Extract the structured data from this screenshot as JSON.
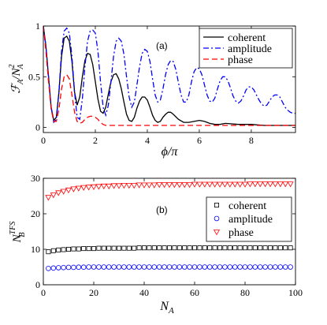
{
  "chart_data": [
    {
      "type": "line",
      "panel_label": "(a)",
      "xlabel": "ϕ/π",
      "ylabel_main": "ℱ",
      "ylabel_sub": "A",
      "ylabel_den": "/N",
      "ylabel_den_sup": "2",
      "ylabel_den_sub": "A",
      "xlim": [
        0,
        9.7
      ],
      "ylim": [
        -0.05,
        1.0
      ],
      "xticks": [
        0,
        2,
        4,
        6,
        8
      ],
      "yticks": [
        0,
        0.5,
        1
      ],
      "ytick_labels": [
        "0",
        "0.5",
        "1"
      ],
      "legend_position": "top-right",
      "series": [
        {
          "name": "coherent",
          "color": "#000000",
          "style": "solid",
          "x": [
            0,
            0.1,
            0.2,
            0.3,
            0.4,
            0.5,
            0.6,
            0.7,
            0.8,
            0.9,
            1.0,
            1.1,
            1.2,
            1.3,
            1.4,
            1.5,
            1.6,
            1.7,
            1.8,
            1.9,
            2.0,
            2.1,
            2.2,
            2.3,
            2.4,
            2.5,
            2.6,
            2.7,
            2.8,
            2.9,
            3.0,
            3.1,
            3.2,
            3.3,
            3.4,
            3.5,
            3.6,
            3.7,
            3.8,
            3.9,
            4.0,
            4.1,
            4.2,
            4.3,
            4.4,
            4.5,
            4.6,
            4.7,
            4.8,
            4.9,
            5.0,
            5.2,
            5.4,
            5.6,
            5.8,
            6.0,
            6.2,
            6.4,
            6.6,
            6.8,
            7.0,
            7.5,
            8.0,
            8.5,
            9.0,
            9.5,
            9.7
          ],
          "y": [
            1.0,
            0.8,
            0.5,
            0.2,
            0.07,
            0.1,
            0.35,
            0.7,
            0.88,
            0.9,
            0.85,
            0.65,
            0.35,
            0.22,
            0.3,
            0.5,
            0.66,
            0.73,
            0.72,
            0.62,
            0.45,
            0.28,
            0.16,
            0.14,
            0.2,
            0.33,
            0.45,
            0.52,
            0.53,
            0.48,
            0.38,
            0.25,
            0.13,
            0.07,
            0.06,
            0.1,
            0.19,
            0.26,
            0.3,
            0.3,
            0.27,
            0.2,
            0.12,
            0.07,
            0.05,
            0.06,
            0.1,
            0.13,
            0.15,
            0.15,
            0.13,
            0.08,
            0.05,
            0.05,
            0.06,
            0.07,
            0.06,
            0.04,
            0.03,
            0.03,
            0.04,
            0.03,
            0.03,
            0.02,
            0.02,
            0.02,
            0.02
          ]
        },
        {
          "name": "amplitude",
          "color": "#0000ff",
          "style": "dashdot",
          "x": [
            0,
            0.1,
            0.2,
            0.3,
            0.4,
            0.5,
            0.6,
            0.7,
            0.8,
            0.9,
            1.0,
            1.1,
            1.2,
            1.3,
            1.4,
            1.5,
            1.6,
            1.7,
            1.8,
            1.9,
            2.0,
            2.1,
            2.2,
            2.3,
            2.4,
            2.5,
            2.6,
            2.7,
            2.8,
            2.9,
            3.0,
            3.1,
            3.2,
            3.3,
            3.4,
            3.5,
            3.6,
            3.7,
            3.8,
            3.9,
            4.0,
            4.1,
            4.2,
            4.3,
            4.4,
            4.5,
            4.6,
            4.7,
            4.8,
            4.9,
            5.0,
            5.1,
            5.2,
            5.3,
            5.4,
            5.5,
            5.6,
            5.7,
            5.8,
            5.9,
            6.0,
            6.1,
            6.2,
            6.3,
            6.4,
            6.5,
            6.6,
            6.7,
            6.8,
            6.9,
            7.0,
            7.1,
            7.2,
            7.3,
            7.4,
            7.5,
            7.6,
            7.7,
            7.8,
            7.9,
            8.0,
            8.1,
            8.2,
            8.3,
            8.4,
            8.5,
            8.6,
            8.7,
            8.8,
            8.9,
            9.0,
            9.1,
            9.2,
            9.3,
            9.4,
            9.5,
            9.6,
            9.7
          ],
          "y": [
            1.0,
            0.8,
            0.5,
            0.2,
            0.05,
            0.08,
            0.35,
            0.75,
            0.95,
            0.98,
            0.93,
            0.7,
            0.35,
            0.1,
            0.08,
            0.28,
            0.6,
            0.85,
            0.95,
            0.96,
            0.93,
            0.75,
            0.45,
            0.2,
            0.12,
            0.22,
            0.45,
            0.7,
            0.85,
            0.88,
            0.85,
            0.72,
            0.5,
            0.3,
            0.2,
            0.25,
            0.42,
            0.6,
            0.73,
            0.77,
            0.75,
            0.65,
            0.48,
            0.32,
            0.25,
            0.27,
            0.38,
            0.52,
            0.62,
            0.66,
            0.65,
            0.57,
            0.44,
            0.32,
            0.25,
            0.25,
            0.32,
            0.45,
            0.55,
            0.59,
            0.58,
            0.52,
            0.42,
            0.32,
            0.26,
            0.25,
            0.29,
            0.38,
            0.46,
            0.5,
            0.5,
            0.46,
            0.39,
            0.31,
            0.26,
            0.24,
            0.26,
            0.31,
            0.37,
            0.4,
            0.4,
            0.37,
            0.32,
            0.27,
            0.23,
            0.21,
            0.22,
            0.26,
            0.3,
            0.32,
            0.32,
            0.3,
            0.25,
            0.2,
            0.17,
            0.15,
            0.14,
            0.14
          ]
        },
        {
          "name": "phase",
          "color": "#ff0000",
          "style": "dashed",
          "x": [
            0,
            0.1,
            0.2,
            0.3,
            0.4,
            0.5,
            0.6,
            0.7,
            0.8,
            0.9,
            1.0,
            1.1,
            1.2,
            1.3,
            1.4,
            1.5,
            1.6,
            1.7,
            1.8,
            1.9,
            2.0,
            2.1,
            2.2,
            2.3,
            2.4,
            2.6,
            2.8,
            3.0,
            3.5,
            4.0,
            5.0,
            6.0,
            7.0,
            8.0,
            9.0,
            9.7
          ],
          "y": [
            1.0,
            0.75,
            0.45,
            0.18,
            0.06,
            0.06,
            0.18,
            0.38,
            0.5,
            0.52,
            0.48,
            0.32,
            0.15,
            0.06,
            0.04,
            0.05,
            0.08,
            0.1,
            0.11,
            0.11,
            0.1,
            0.08,
            0.05,
            0.03,
            0.02,
            0.02,
            0.02,
            0.02,
            0.02,
            0.02,
            0.02,
            0.02,
            0.02,
            0.02,
            0.02,
            0.02
          ]
        }
      ]
    },
    {
      "type": "scatter",
      "panel_label": "(b)",
      "xlabel": "N",
      "xlabel_sub": "A",
      "ylabel_main": "N",
      "ylabel_sub": "B",
      "ylabel_sup": "TFS",
      "xlim": [
        0,
        100
      ],
      "ylim": [
        0,
        30
      ],
      "xticks": [
        0,
        20,
        40,
        60,
        80,
        100
      ],
      "yticks": [
        0,
        10,
        20,
        30
      ],
      "legend_position": "center-right",
      "x": [
        2,
        4,
        6,
        8,
        10,
        12,
        14,
        16,
        18,
        20,
        22,
        24,
        26,
        28,
        30,
        32,
        34,
        36,
        38,
        40,
        42,
        44,
        46,
        48,
        50,
        52,
        54,
        56,
        58,
        60,
        62,
        64,
        66,
        68,
        70,
        72,
        74,
        76,
        78,
        80,
        82,
        84,
        86,
        88,
        90,
        92,
        94,
        96,
        98
      ],
      "series": [
        {
          "name": "coherent",
          "color": "#000000",
          "marker": "square",
          "values": [
            9.3,
            9.6,
            9.8,
            9.9,
            10.0,
            10.1,
            10.1,
            10.2,
            10.2,
            10.2,
            10.3,
            10.3,
            10.3,
            10.3,
            10.3,
            10.3,
            10.3,
            10.3,
            10.4,
            10.4,
            10.4,
            10.4,
            10.4,
            10.4,
            10.4,
            10.4,
            10.4,
            10.4,
            10.4,
            10.4,
            10.4,
            10.4,
            10.4,
            10.4,
            10.4,
            10.4,
            10.4,
            10.4,
            10.4,
            10.4,
            10.4,
            10.4,
            10.4,
            10.4,
            10.4,
            10.4,
            10.4,
            10.4,
            10.4
          ]
        },
        {
          "name": "amplitude",
          "color": "#0000ff",
          "marker": "circle",
          "values": [
            4.6,
            4.7,
            4.8,
            4.85,
            4.9,
            4.9,
            4.95,
            4.95,
            5.0,
            5.0,
            5.0,
            5.0,
            5.0,
            5.0,
            5.0,
            5.0,
            5.0,
            5.0,
            5.0,
            5.0,
            5.0,
            5.0,
            5.0,
            5.0,
            5.0,
            5.0,
            5.0,
            5.0,
            5.0,
            5.0,
            5.0,
            5.0,
            5.0,
            5.0,
            5.0,
            5.0,
            5.0,
            5.0,
            5.0,
            5.0,
            5.0,
            5.0,
            5.0,
            5.0,
            5.0,
            5.0,
            5.0,
            5.0,
            5.0
          ]
        },
        {
          "name": "phase",
          "color": "#ff0000",
          "marker": "triangle-down",
          "values": [
            24.6,
            25.3,
            25.9,
            26.3,
            26.7,
            27.0,
            27.2,
            27.4,
            27.5,
            27.6,
            27.7,
            27.8,
            27.8,
            27.9,
            27.9,
            28.0,
            28.0,
            28.0,
            28.1,
            28.1,
            28.1,
            28.1,
            28.2,
            28.2,
            28.2,
            28.2,
            28.2,
            28.2,
            28.2,
            28.3,
            28.3,
            28.3,
            28.3,
            28.3,
            28.3,
            28.3,
            28.3,
            28.3,
            28.3,
            28.3,
            28.4,
            28.4,
            28.4,
            28.4,
            28.4,
            28.4,
            28.4,
            28.4,
            28.4
          ]
        }
      ]
    }
  ]
}
